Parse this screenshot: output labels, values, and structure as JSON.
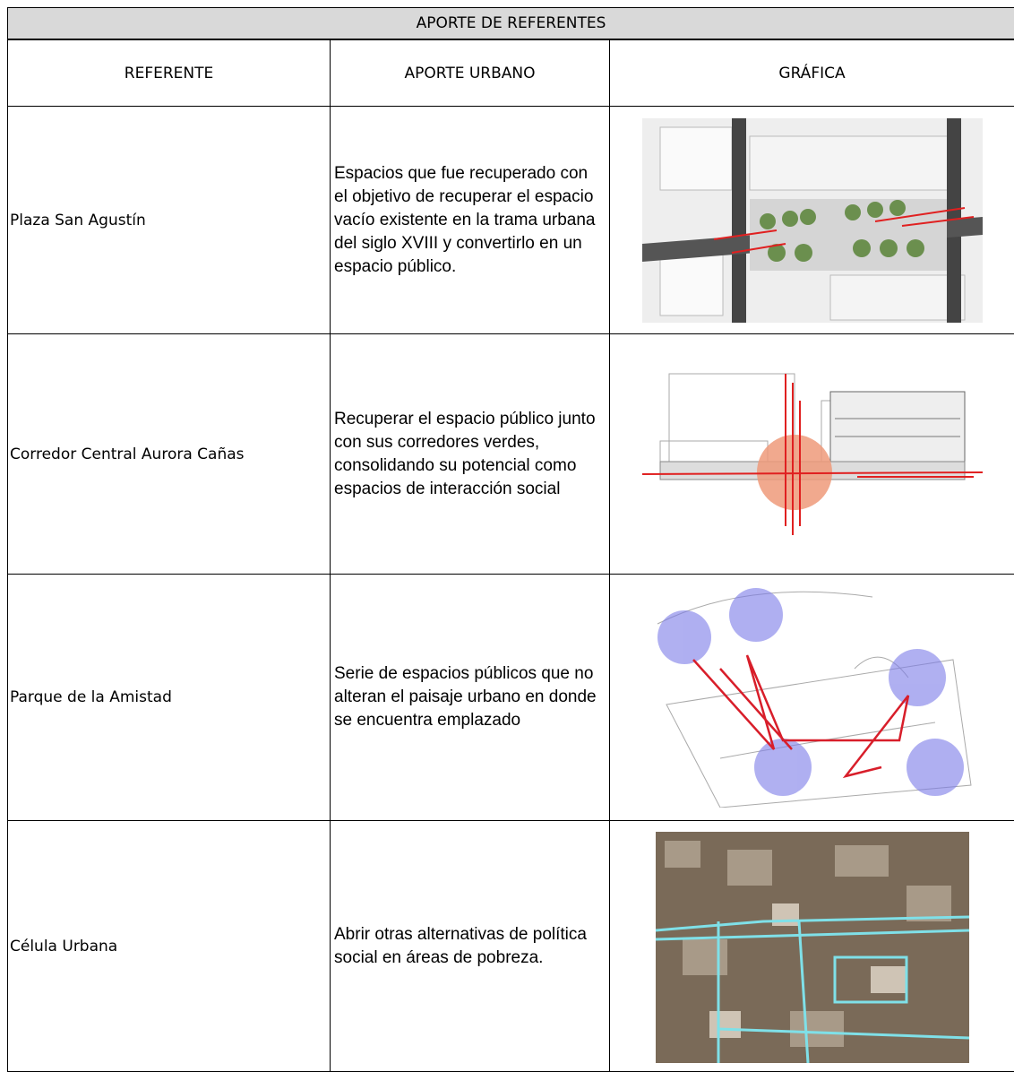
{
  "table": {
    "title": "APORTE DE REFERENTES",
    "header": [
      "REFERENTE",
      "APORTE URBANO",
      "GRÁFICA"
    ],
    "rows": [
      [
        "Plaza San Agustín",
        "Espacios que fue recuperado con el objetivo de recuperar el espacio vacío existente en la trama urbana del siglo XVIII y convertirlo en un espacio público."
      ],
      [
        "Corredor Central Aurora Cañas",
        "Recuperar el espacio público junto con sus corredores verdes, consolidando su potencial como espacios de interacción social"
      ],
      [
        "Parque de la Amistad",
        "Serie de espacios públicos que no alteran el paisaje urbano en donde se encuentra emplazado"
      ],
      [
        "Célula Urbana",
        "Abrir otras alternativas de política social en áreas de pobreza."
      ]
    ]
  }
}
